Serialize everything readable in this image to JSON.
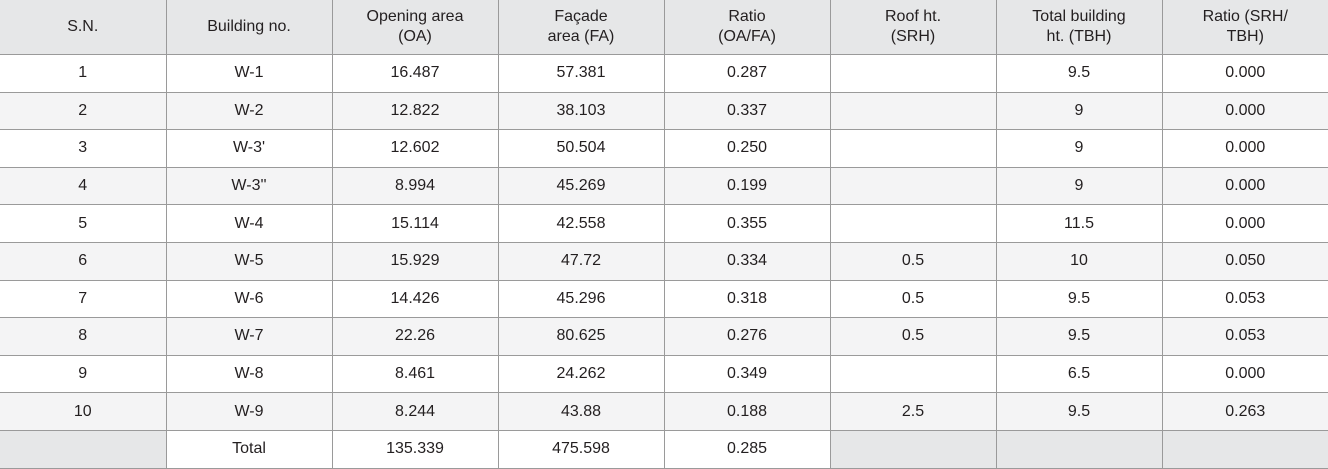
{
  "table": {
    "header": [
      "S.N.",
      "Building no.",
      "Opening area\n(OA)",
      "Façade\narea (FA)",
      "Ratio\n(OA/FA)",
      "Roof ht.\n(SRH)",
      "Total building\nht.  (TBH)",
      "Ratio (SRH/\nTBH)"
    ],
    "rows": [
      [
        "1",
        "W-1",
        "16.487",
        "57.381",
        "0.287",
        null,
        "9.5",
        "0.000"
      ],
      [
        "2",
        "W-2",
        "12.822",
        "38.103",
        "0.337",
        null,
        "9",
        "0.000"
      ],
      [
        "3",
        "W-3'",
        "12.602",
        "50.504",
        "0.250",
        null,
        "9",
        "0.000"
      ],
      [
        "4",
        "W-3''",
        "8.994",
        "45.269",
        "0.199",
        null,
        "9",
        "0.000"
      ],
      [
        "5",
        "W-4",
        "15.114",
        "42.558",
        "0.355",
        null,
        "11.5",
        "0.000"
      ],
      [
        "6",
        "W-5",
        "15.929",
        "47.72",
        "0.334",
        "0.5",
        "10",
        "0.050"
      ],
      [
        "7",
        "W-6",
        "14.426",
        "45.296",
        "0.318",
        "0.5",
        "9.5",
        "0.053"
      ],
      [
        "8",
        "W-7",
        "22.26",
        "80.625",
        "0.276",
        "0.5",
        "9.5",
        "0.053"
      ],
      [
        "9",
        "W-8",
        "8.461",
        "24.262",
        "0.349",
        null,
        "6.5",
        "0.000"
      ],
      [
        "10",
        "W-9",
        "8.244",
        "43.88",
        "0.188",
        "2.5",
        "9.5",
        "0.263"
      ],
      [
        null,
        "Total",
        "135.339",
        "475.598",
        "0.285",
        null,
        null,
        null
      ]
    ]
  }
}
